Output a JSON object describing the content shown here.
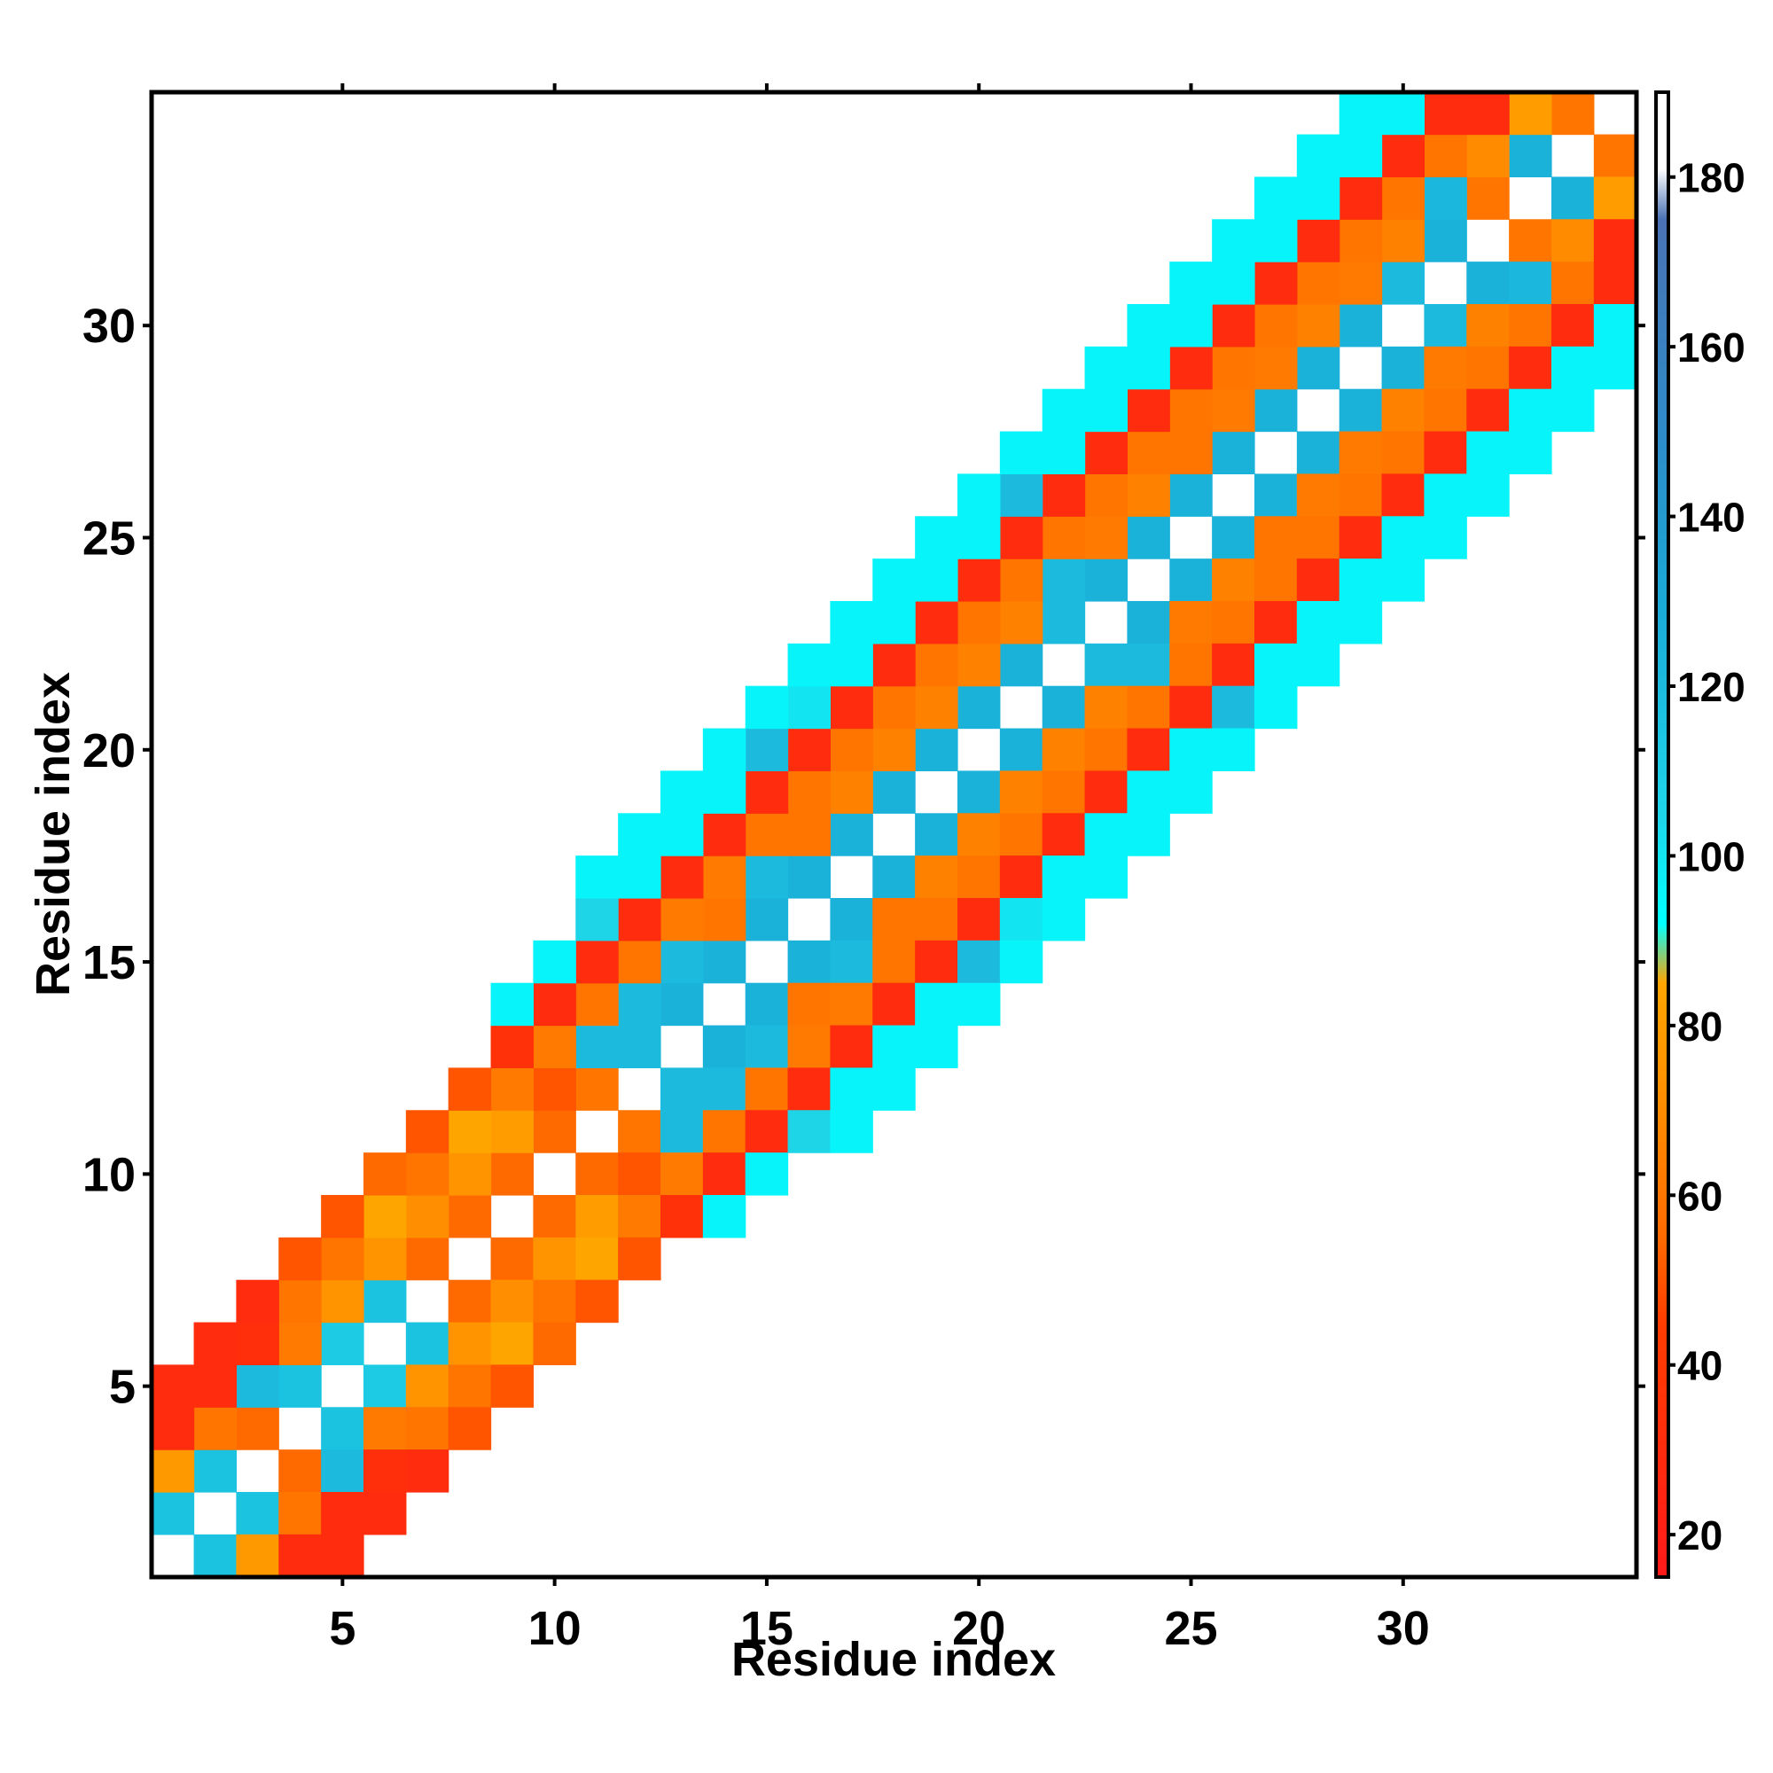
{
  "chart_data": {
    "type": "heatmap",
    "title": "",
    "xlabel": "Residue index",
    "ylabel": "Residue index",
    "x_range": [
      0.5,
      35.5
    ],
    "y_range": [
      0.5,
      35.5
    ],
    "x_ticks": [
      5,
      10,
      15,
      20,
      25,
      30
    ],
    "y_ticks": [
      5,
      10,
      15,
      20,
      25,
      30
    ],
    "grid": false,
    "colorbar": {
      "range": [
        15,
        190
      ],
      "ticks": [
        20,
        40,
        60,
        80,
        100,
        120,
        140,
        160,
        180
      ],
      "stops": [
        {
          "value": 15,
          "color": "#ff1a1a"
        },
        {
          "value": 45,
          "color": "#ff3d00"
        },
        {
          "value": 55,
          "color": "#ff6a00"
        },
        {
          "value": 70,
          "color": "#ff8c00"
        },
        {
          "value": 85,
          "color": "#ffa500"
        },
        {
          "value": 92,
          "color": "#00ffff"
        },
        {
          "value": 105,
          "color": "#1ed5e8"
        },
        {
          "value": 130,
          "color": "#1aa9d6"
        },
        {
          "value": 150,
          "color": "#2e8bc7"
        },
        {
          "value": 175,
          "color": "#4a72b5"
        },
        {
          "value": 181,
          "color": "#ffffff"
        },
        {
          "value": 190,
          "color": "#ffffff"
        }
      ]
    },
    "offset_values": {
      "0": [
        190,
        190,
        190,
        190,
        190,
        190,
        190,
        190,
        190,
        190,
        190,
        190,
        190,
        190,
        190,
        190,
        190,
        190,
        190,
        190,
        190,
        190,
        190,
        190,
        190,
        190,
        190,
        190,
        190,
        190,
        190,
        190,
        190,
        190,
        190
      ],
      "1": [
        115,
        115,
        55,
        115,
        110,
        115,
        55,
        55,
        55,
        55,
        60,
        120,
        125,
        125,
        125,
        125,
        125,
        125,
        125,
        125,
        125,
        120,
        125,
        125,
        125,
        125,
        125,
        125,
        125,
        120,
        125,
        60,
        125,
        60
      ],
      "2": [
        78,
        60,
        120,
        62,
        75,
        75,
        72,
        75,
        80,
        50,
        120,
        120,
        120,
        60,
        120,
        60,
        65,
        65,
        65,
        65,
        65,
        120,
        62,
        65,
        60,
        62,
        62,
        65,
        62,
        65,
        122,
        70,
        80
      ],
      "3": [
        30,
        30,
        32,
        60,
        60,
        85,
        60,
        85,
        62,
        62,
        60,
        60,
        62,
        62,
        60,
        60,
        60,
        60,
        60,
        60,
        60,
        60,
        60,
        60,
        60,
        60,
        60,
        60,
        60,
        60,
        60,
        30
      ],
      "4": [
        30,
        30,
        30,
        50,
        50,
        55,
        50,
        50,
        35,
        30,
        30,
        30,
        30,
        30,
        30,
        30,
        30,
        30,
        30,
        30,
        30,
        30,
        30,
        30,
        30,
        30,
        30,
        30,
        30,
        30,
        30
      ],
      "5": [
        null,
        null,
        null,
        null,
        null,
        null,
        null,
        null,
        95,
        95,
        105,
        95,
        95,
        95,
        120,
        100,
        95,
        95,
        95,
        95,
        120,
        95,
        95,
        95,
        95,
        95,
        95,
        95,
        95,
        95
      ],
      "6": [
        null,
        null,
        null,
        null,
        null,
        null,
        null,
        null,
        null,
        null,
        95,
        95,
        95,
        95,
        95,
        95,
        95,
        95,
        95,
        95,
        95,
        95,
        95,
        95,
        95,
        95,
        95,
        95,
        95
      ]
    }
  }
}
